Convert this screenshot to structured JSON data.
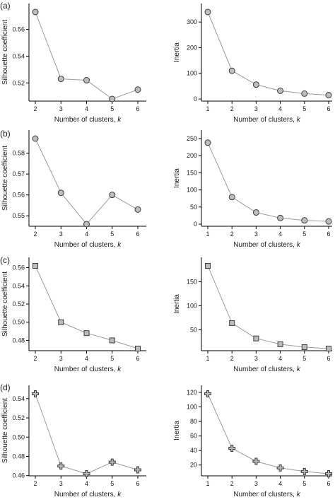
{
  "marker_fill": "#bdbdbd",
  "marker_stroke": "#3a3a3a",
  "line_color": "#9a9a9a",
  "panel_labels": [
    "(a)",
    "(b)",
    "(c)",
    "(d)"
  ],
  "chart_data": [
    {
      "panel": 0,
      "type": "line",
      "marker": "circle",
      "xlabel": "Number of clusters, k",
      "ylabel": "Silhouette coefficient",
      "x": [
        2,
        3,
        4,
        5,
        6
      ],
      "y": [
        0.573,
        0.523,
        0.522,
        0.508,
        0.515
      ],
      "xlim": [
        2,
        6
      ],
      "ylim": [
        0.508,
        0.573
      ],
      "xticks": [
        2,
        3,
        4,
        5,
        6
      ],
      "yticks": [
        0.52,
        0.54,
        0.56
      ],
      "ytick_labels": [
        "0.52",
        "0.54",
        "0.56"
      ],
      "grid": false
    },
    {
      "panel": 0,
      "type": "line",
      "marker": "circle",
      "xlabel": "Number of clusters, k",
      "ylabel": "Inertia",
      "x": [
        1,
        2,
        3,
        4,
        5,
        6
      ],
      "y": [
        339,
        110,
        56,
        32,
        21,
        15
      ],
      "xlim": [
        1,
        6
      ],
      "ylim": [
        0,
        339
      ],
      "xticks": [
        1,
        2,
        3,
        4,
        5,
        6
      ],
      "yticks": [
        0,
        100,
        200,
        300
      ],
      "ytick_labels": [
        "0",
        "100",
        "200",
        "300"
      ],
      "grid": false
    },
    {
      "panel": 1,
      "type": "line",
      "marker": "circle",
      "xlabel": "Number of clusters, k",
      "ylabel": "Silhouette coefficient",
      "x": [
        2,
        3,
        4,
        5,
        6
      ],
      "y": [
        0.587,
        0.561,
        0.546,
        0.56,
        0.553
      ],
      "xlim": [
        2,
        6
      ],
      "ylim": [
        0.546,
        0.587
      ],
      "xticks": [
        2,
        3,
        4,
        5,
        6
      ],
      "yticks": [
        0.55,
        0.56,
        0.57,
        0.58
      ],
      "ytick_labels": [
        "0.55",
        "0.56",
        "0.57",
        "0.58"
      ],
      "grid": false
    },
    {
      "panel": 1,
      "type": "line",
      "marker": "circle",
      "xlabel": "Number of clusters, k",
      "ylabel": "Inertia",
      "x": [
        1,
        2,
        3,
        4,
        5,
        6
      ],
      "y": [
        238,
        79,
        34,
        18,
        11,
        8
      ],
      "xlim": [
        1,
        6
      ],
      "ylim": [
        0,
        250
      ],
      "xticks": [
        1,
        2,
        3,
        4,
        5,
        6
      ],
      "yticks": [
        0,
        50,
        100,
        150,
        200,
        250
      ],
      "ytick_labels": [
        "0",
        "50",
        "100",
        "150",
        "200",
        "250"
      ],
      "grid": false
    },
    {
      "panel": 2,
      "type": "line",
      "marker": "square",
      "xlabel": "Number of clusters, k",
      "ylabel": "Silhouette coefficient",
      "x": [
        2,
        3,
        4,
        5,
        6
      ],
      "y": [
        0.562,
        0.5,
        0.488,
        0.48,
        0.471
      ],
      "xlim": [
        2,
        6
      ],
      "ylim": [
        0.471,
        0.562
      ],
      "xticks": [
        2,
        3,
        4,
        5,
        6
      ],
      "yticks": [
        0.48,
        0.5,
        0.52,
        0.54,
        0.56
      ],
      "ytick_labels": [
        "0.48",
        "0.50",
        "0.52",
        "0.54",
        "0.56"
      ],
      "grid": false
    },
    {
      "panel": 2,
      "type": "line",
      "marker": "square",
      "xlabel": "Number of clusters, k",
      "ylabel": "Inertia",
      "x": [
        1,
        2,
        3,
        4,
        5,
        6
      ],
      "y": [
        183,
        64,
        32,
        20,
        14,
        11
      ],
      "xlim": [
        1,
        6
      ],
      "ylim": [
        11,
        183
      ],
      "xticks": [
        1,
        2,
        3,
        4,
        5,
        6
      ],
      "yticks": [
        50,
        100,
        150
      ],
      "ytick_labels": [
        "50",
        "100",
        "150"
      ],
      "grid": false
    },
    {
      "panel": 3,
      "type": "line",
      "marker": "plus",
      "xlabel": "Number of clusters, k",
      "ylabel": "Silhouette coefficient",
      "x": [
        2,
        3,
        4,
        5,
        6
      ],
      "y": [
        0.545,
        0.47,
        0.462,
        0.474,
        0.466
      ],
      "xlim": [
        2,
        6
      ],
      "ylim": [
        0.462,
        0.545
      ],
      "xticks": [
        2,
        3,
        4,
        5,
        6
      ],
      "yticks": [
        0.46,
        0.48,
        0.5,
        0.52,
        0.54
      ],
      "ytick_labels": [
        "0.46",
        "0.48",
        "0.50",
        "0.52",
        "0.54"
      ],
      "grid": false
    },
    {
      "panel": 3,
      "type": "line",
      "marker": "plus",
      "xlabel": "Number of clusters, k",
      "ylabel": "Inertia",
      "x": [
        1,
        2,
        3,
        4,
        5,
        6
      ],
      "y": [
        118,
        43,
        25,
        16,
        11,
        8
      ],
      "xlim": [
        1,
        6
      ],
      "ylim": [
        8,
        118
      ],
      "xticks": [
        1,
        2,
        3,
        4,
        5,
        6
      ],
      "yticks": [
        20,
        40,
        60,
        80,
        100,
        120
      ],
      "ytick_labels": [
        "20",
        "40",
        "60",
        "80",
        "100",
        "120"
      ],
      "grid": false
    }
  ]
}
